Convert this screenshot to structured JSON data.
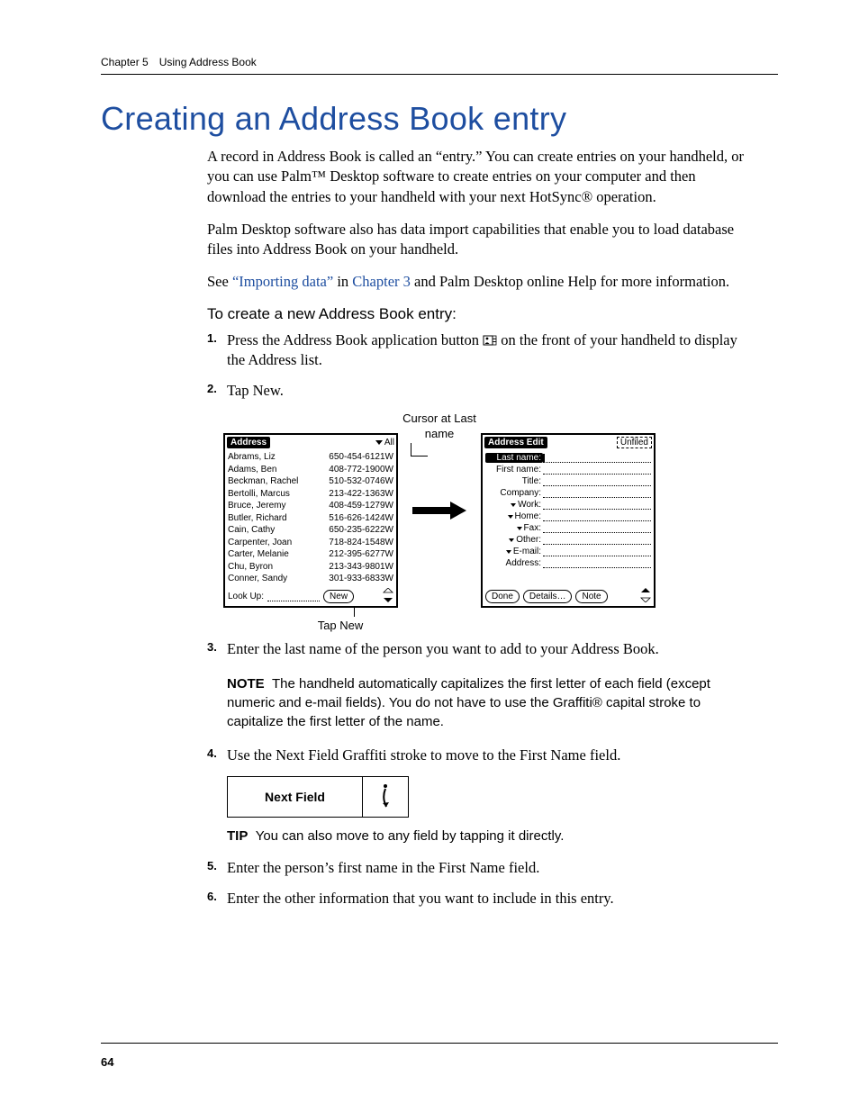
{
  "running_head": "Chapter 5 Using Address Book",
  "title": "Creating an Address Book entry",
  "para1": "A record in Address Book is called an “entry.” You can create entries on your handheld, or you can use Palm™ Desktop software to create entries on your computer and then download the entries to your handheld with your next HotSync® operation.",
  "para2": "Palm Desktop software also has data import capabilities that enable you to load database files into Address Book on your handheld.",
  "para3a": "See ",
  "para3_link1": "“Importing data”",
  "para3b": " in ",
  "para3_link2": "Chapter 3",
  "para3c": " and Palm Desktop online Help for more information.",
  "subhead": "To create a new Address Book entry:",
  "step1a": "Press the Address Book application button ",
  "step1b": " on the front of your handheld to display the Address list.",
  "step2": "Tap New.",
  "step3": "Enter the last name of the person you want to add to your Address Book.",
  "step4": "Use the Next Field Graffiti stroke to move to the First Name field.",
  "step5": "Enter the person’s first name in the First Name field.",
  "step6": "Enter the other information that you want to include in this entry.",
  "note_label": "NOTE",
  "note_text": "The handheld automatically capitalizes the first letter of each field (except numeric and e-mail fields). You do not have to use the Graffiti® capital stroke to capitalize the first letter of the name.",
  "tip_label": "TIP",
  "tip_text": "You can also move to any field by tapping it directly.",
  "nextfield_label": "Next Field",
  "page_number": "64",
  "callout_cursor": "Cursor at Last name",
  "callout_tapnew": "Tap New",
  "screen_left": {
    "title": "Address",
    "category": "All",
    "lookup_label": "Look Up:",
    "new_btn": "New",
    "entries": [
      {
        "name": "Abrams, Liz",
        "phone": "650-454-6121",
        "tag": "W"
      },
      {
        "name": "Adams, Ben",
        "phone": "408-772-1900",
        "tag": "W"
      },
      {
        "name": "Beckman, Rachel",
        "phone": "510-532-0746",
        "tag": "W"
      },
      {
        "name": "Bertolli, Marcus",
        "phone": "213-422-1363",
        "tag": "W"
      },
      {
        "name": "Bruce, Jeremy",
        "phone": "408-459-1279",
        "tag": "W"
      },
      {
        "name": "Butler, Richard",
        "phone": "516-626-1424",
        "tag": "W"
      },
      {
        "name": "Cain, Cathy",
        "phone": "650-235-6222",
        "tag": "W"
      },
      {
        "name": "Carpenter, Joan",
        "phone": "718-824-1548",
        "tag": "W"
      },
      {
        "name": "Carter, Melanie",
        "phone": "212-395-6277",
        "tag": "W"
      },
      {
        "name": "Chu, Byron",
        "phone": "213-343-9801",
        "tag": "W"
      },
      {
        "name": "Conner, Sandy",
        "phone": "301-933-6833",
        "tag": "W"
      }
    ]
  },
  "screen_right": {
    "title": "Address Edit",
    "category": "Unfiled",
    "done_btn": "Done",
    "details_btn": "Details…",
    "note_btn": "Note",
    "fields": [
      {
        "label": "Last name:",
        "selected": true,
        "dropdown": false
      },
      {
        "label": "First name:",
        "selected": false,
        "dropdown": false
      },
      {
        "label": "Title:",
        "selected": false,
        "dropdown": false
      },
      {
        "label": "Company:",
        "selected": false,
        "dropdown": false
      },
      {
        "label": "Work:",
        "selected": false,
        "dropdown": true
      },
      {
        "label": "Home:",
        "selected": false,
        "dropdown": true
      },
      {
        "label": "Fax:",
        "selected": false,
        "dropdown": true
      },
      {
        "label": "Other:",
        "selected": false,
        "dropdown": true
      },
      {
        "label": "E-mail:",
        "selected": false,
        "dropdown": true
      },
      {
        "label": "Address:",
        "selected": false,
        "dropdown": false
      }
    ]
  }
}
